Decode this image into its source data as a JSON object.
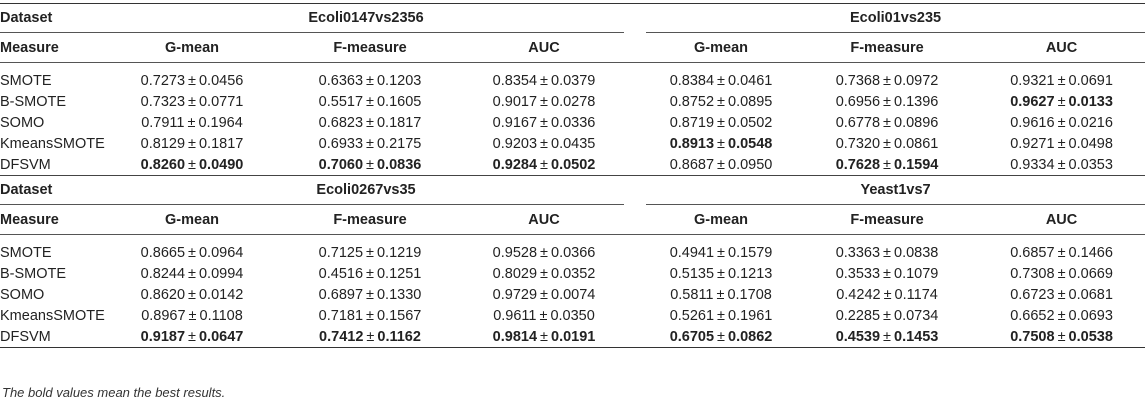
{
  "labels": {
    "dataset": "Dataset",
    "measure": "Measure",
    "measures": [
      "G-mean",
      "F-measure",
      "AUC"
    ],
    "pm": "±"
  },
  "blocks": [
    {
      "datasets": [
        "Ecoli0147vs2356",
        "Ecoli01vs235"
      ],
      "rows": [
        {
          "method": "SMOTE",
          "cells": [
            [
              "0.7273",
              "0.0456",
              false
            ],
            [
              "0.6363",
              "0.1203",
              false
            ],
            [
              "0.8354",
              "0.0379",
              false
            ],
            [
              "0.8384",
              "0.0461",
              false
            ],
            [
              "0.7368",
              "0.0972",
              false
            ],
            [
              "0.9321",
              "0.0691",
              false
            ]
          ]
        },
        {
          "method": "B-SMOTE",
          "cells": [
            [
              "0.7323",
              "0.0771",
              false
            ],
            [
              "0.5517",
              "0.1605",
              false
            ],
            [
              "0.9017",
              "0.0278",
              false
            ],
            [
              "0.8752",
              "0.0895",
              false
            ],
            [
              "0.6956",
              "0.1396",
              false
            ],
            [
              "0.9627",
              "0.0133",
              true
            ]
          ]
        },
        {
          "method": "SOMO",
          "cells": [
            [
              "0.7911",
              "0.1964",
              false
            ],
            [
              "0.6823",
              "0.1817",
              false
            ],
            [
              "0.9167",
              "0.0336",
              false
            ],
            [
              "0.8719",
              "0.0502",
              false
            ],
            [
              "0.6778",
              "0.0896",
              false
            ],
            [
              "0.9616",
              "0.0216",
              false
            ]
          ]
        },
        {
          "method": "KmeansSMOTE",
          "cells": [
            [
              "0.8129",
              "0.1817",
              false
            ],
            [
              "0.6933",
              "0.2175",
              false
            ],
            [
              "0.9203",
              "0.0435",
              false
            ],
            [
              "0.8913",
              "0.0548",
              true
            ],
            [
              "0.7320",
              "0.0861",
              false
            ],
            [
              "0.9271",
              "0.0498",
              false
            ]
          ]
        },
        {
          "method": "DFSVM",
          "cells": [
            [
              "0.8260",
              "0.0490",
              true
            ],
            [
              "0.7060",
              "0.0836",
              true
            ],
            [
              "0.9284",
              "0.0502",
              true
            ],
            [
              "0.8687",
              "0.0950",
              false
            ],
            [
              "0.7628",
              "0.1594",
              true
            ],
            [
              "0.9334",
              "0.0353",
              false
            ]
          ]
        }
      ]
    },
    {
      "datasets": [
        "Ecoli0267vs35",
        "Yeast1vs7"
      ],
      "rows": [
        {
          "method": "SMOTE",
          "cells": [
            [
              "0.8665",
              "0.0964",
              false
            ],
            [
              "0.7125",
              "0.1219",
              false
            ],
            [
              "0.9528",
              "0.0366",
              false
            ],
            [
              "0.4941",
              "0.1579",
              false
            ],
            [
              "0.3363",
              "0.0838",
              false
            ],
            [
              "0.6857",
              "0.1466",
              false
            ]
          ]
        },
        {
          "method": "B-SMOTE",
          "cells": [
            [
              "0.8244",
              "0.0994",
              false
            ],
            [
              "0.4516",
              "0.1251",
              false
            ],
            [
              "0.8029",
              "0.0352",
              false
            ],
            [
              "0.5135",
              "0.1213",
              false
            ],
            [
              "0.3533",
              "0.1079",
              false
            ],
            [
              "0.7308",
              "0.0669",
              false
            ]
          ]
        },
        {
          "method": "SOMO",
          "cells": [
            [
              "0.8620",
              "0.0142",
              false
            ],
            [
              "0.6897",
              "0.1330",
              false
            ],
            [
              "0.9729",
              "0.0074",
              false
            ],
            [
              "0.5811",
              "0.1708",
              false
            ],
            [
              "0.4242",
              "0.1174",
              false
            ],
            [
              "0.6723",
              "0.0681",
              false
            ]
          ]
        },
        {
          "method": "KmeansSMOTE",
          "cells": [
            [
              "0.8967",
              "0.1108",
              false
            ],
            [
              "0.7181",
              "0.1567",
              false
            ],
            [
              "0.9611",
              "0.0350",
              false
            ],
            [
              "0.5261",
              "0.1961",
              false
            ],
            [
              "0.2285",
              "0.0734",
              false
            ],
            [
              "0.6652",
              "0.0693",
              false
            ]
          ]
        },
        {
          "method": "DFSVM",
          "cells": [
            [
              "0.9187",
              "0.0647",
              true
            ],
            [
              "0.7412",
              "0.1162",
              true
            ],
            [
              "0.9814",
              "0.0191",
              true
            ],
            [
              "0.6705",
              "0.0862",
              true
            ],
            [
              "0.4539",
              "0.1453",
              true
            ],
            [
              "0.7508",
              "0.0538",
              true
            ]
          ]
        }
      ]
    }
  ],
  "footnote": "The bold values mean the best results."
}
